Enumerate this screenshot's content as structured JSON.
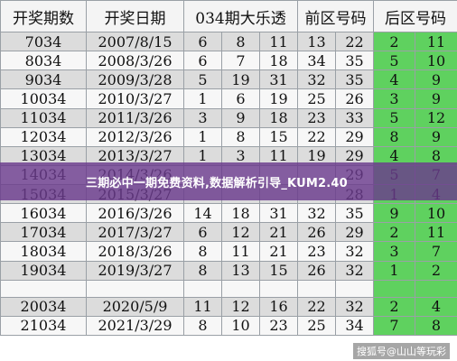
{
  "headers": [
    "开奖期数",
    "开奖日期",
    "034期大乐透",
    "前区号码",
    "后区号码"
  ],
  "rows": [
    {
      "issue": "7034",
      "date": "2007/8/15",
      "front": [
        "6",
        "8",
        "11",
        "13",
        "22"
      ],
      "back": [
        "2",
        "11"
      ]
    },
    {
      "issue": "8034",
      "date": "2008/3/26",
      "front": [
        "6",
        "7",
        "18",
        "34",
        "35"
      ],
      "back": [
        "5",
        "10"
      ]
    },
    {
      "issue": "9034",
      "date": "2009/3/28",
      "front": [
        "5",
        "19",
        "31",
        "32",
        "35"
      ],
      "back": [
        "4",
        "9"
      ]
    },
    {
      "issue": "10034",
      "date": "2010/3/27",
      "front": [
        "1",
        "6",
        "19",
        "25",
        "26"
      ],
      "back": [
        "3",
        "9"
      ]
    },
    {
      "issue": "11034",
      "date": "2011/3/26",
      "front": [
        "3",
        "9",
        "18",
        "23",
        "33"
      ],
      "back": [
        "5",
        "12"
      ]
    },
    {
      "issue": "12034",
      "date": "2012/3/26",
      "front": [
        "1",
        "8",
        "15",
        "22",
        "29"
      ],
      "back": [
        "8",
        "9"
      ]
    },
    {
      "issue": "13034",
      "date": "2013/3/27",
      "front": [
        "1",
        "3",
        "11",
        "19",
        "29"
      ],
      "back": [
        "4",
        "8"
      ]
    },
    {
      "issue": "14034",
      "date": "2014/3/26",
      "front": [
        "",
        "",
        "",
        "",
        "29"
      ],
      "back": [
        "5",
        "7"
      ]
    },
    {
      "issue": "15034",
      "date": "2015/3/27",
      "front": [
        "",
        "",
        "",
        "",
        "28"
      ],
      "back": [
        "1",
        "4"
      ]
    },
    {
      "issue": "16034",
      "date": "2016/3/26",
      "front": [
        "14",
        "18",
        "31",
        "32",
        "35"
      ],
      "back": [
        "9",
        "10"
      ]
    },
    {
      "issue": "17034",
      "date": "2017/3/27",
      "front": [
        "6",
        "12",
        "21",
        "26",
        "29"
      ],
      "back": [
        "2",
        "11"
      ]
    },
    {
      "issue": "18034",
      "date": "2018/3/26",
      "front": [
        "8",
        "11",
        "21",
        "23",
        "32"
      ],
      "back": [
        "3",
        "7"
      ]
    },
    {
      "issue": "19034",
      "date": "2019/3/27",
      "front": [
        "8",
        "13",
        "15",
        "26",
        "32"
      ],
      "back": [
        "1",
        "2"
      ]
    },
    {
      "issue": "",
      "date": "",
      "front": [
        "",
        "",
        "",
        "",
        ""
      ],
      "back": [
        "",
        ""
      ]
    },
    {
      "issue": "20034",
      "date": "2020/5/9",
      "front": [
        "11",
        "12",
        "16",
        "22",
        "32"
      ],
      "back": [
        "2",
        "4"
      ]
    },
    {
      "issue": "21034",
      "date": "2021/3/29",
      "front": [
        "8",
        "10",
        "23",
        "25",
        "34"
      ],
      "back": [
        "7",
        "8"
      ]
    }
  ],
  "banner": "三期必中一期免费资料,数据解析引导_KUM2.40",
  "watermark": "搜狐号@山山等玩彩",
  "colors": {
    "back_zone": "#5fd15f",
    "banner": "#6a3a8c"
  }
}
